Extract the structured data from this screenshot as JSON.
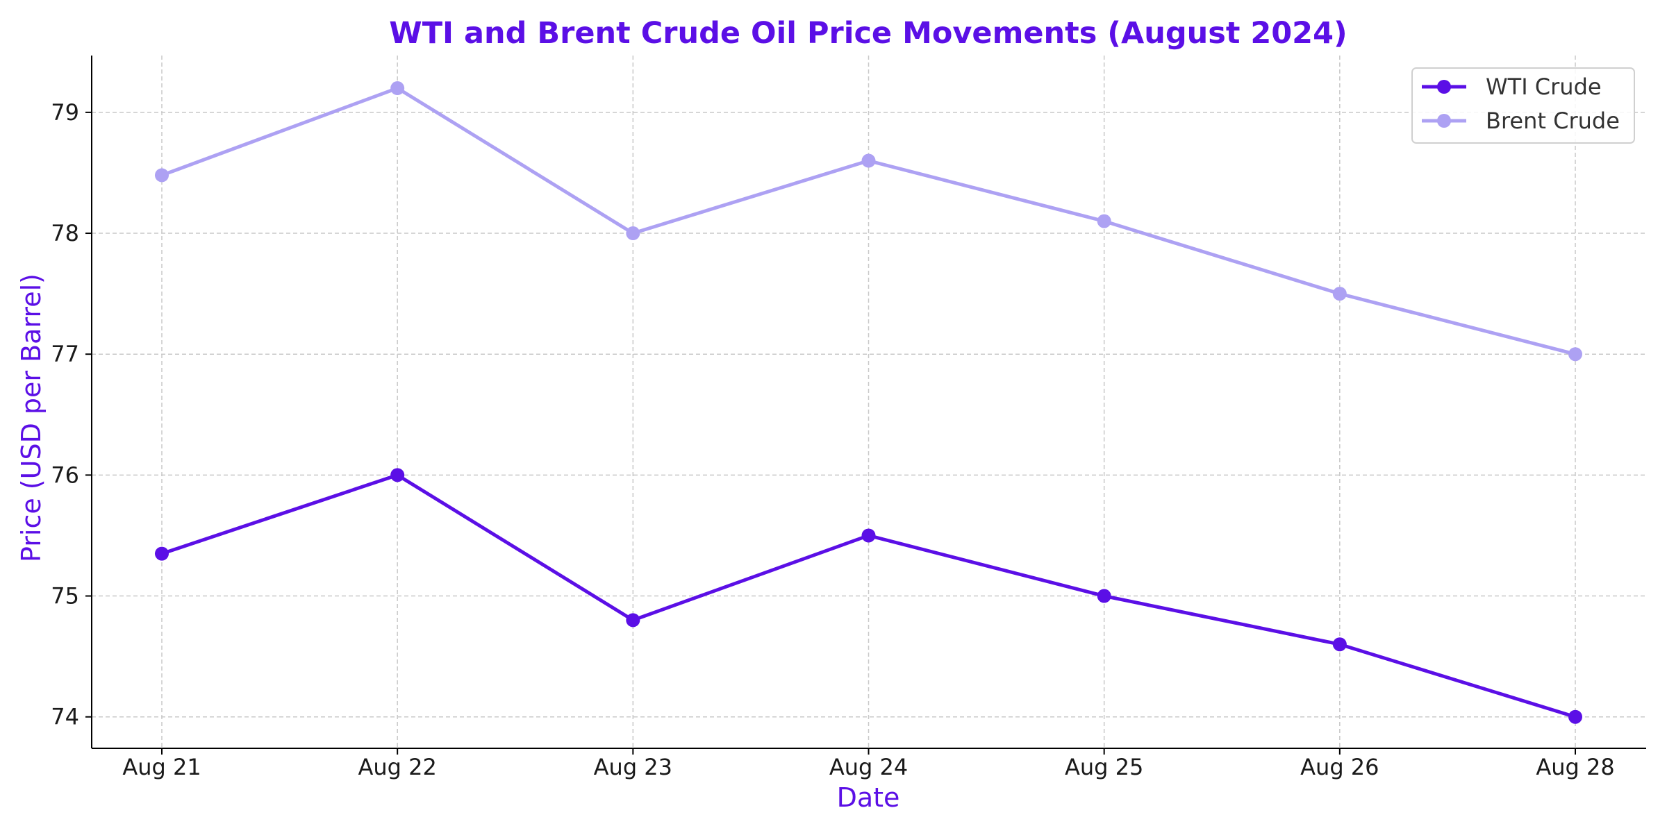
{
  "chart_data": {
    "type": "line",
    "title": "WTI and Brent Crude Oil Price Movements (August 2024)",
    "xlabel": "Date",
    "ylabel": "Price (USD per Barrel)",
    "categories": [
      "Aug 21",
      "Aug 22",
      "Aug 23",
      "Aug 24",
      "Aug 25",
      "Aug 26",
      "Aug 28"
    ],
    "series": [
      {
        "name": "WTI Crude",
        "color": "#5b0fe6",
        "values": [
          75.35,
          76.0,
          74.8,
          75.5,
          75.0,
          74.6,
          74.0
        ]
      },
      {
        "name": "Brent Crude",
        "color": "#ada1f3",
        "values": [
          78.48,
          79.2,
          78.0,
          78.6,
          78.1,
          77.5,
          77.0
        ]
      }
    ],
    "ylim": [
      73.74,
      79.47
    ],
    "yticks": [
      74,
      75,
      76,
      77,
      78,
      79
    ],
    "grid": true,
    "legend_position": "top-right",
    "accent_color": "#5b0fe6"
  }
}
